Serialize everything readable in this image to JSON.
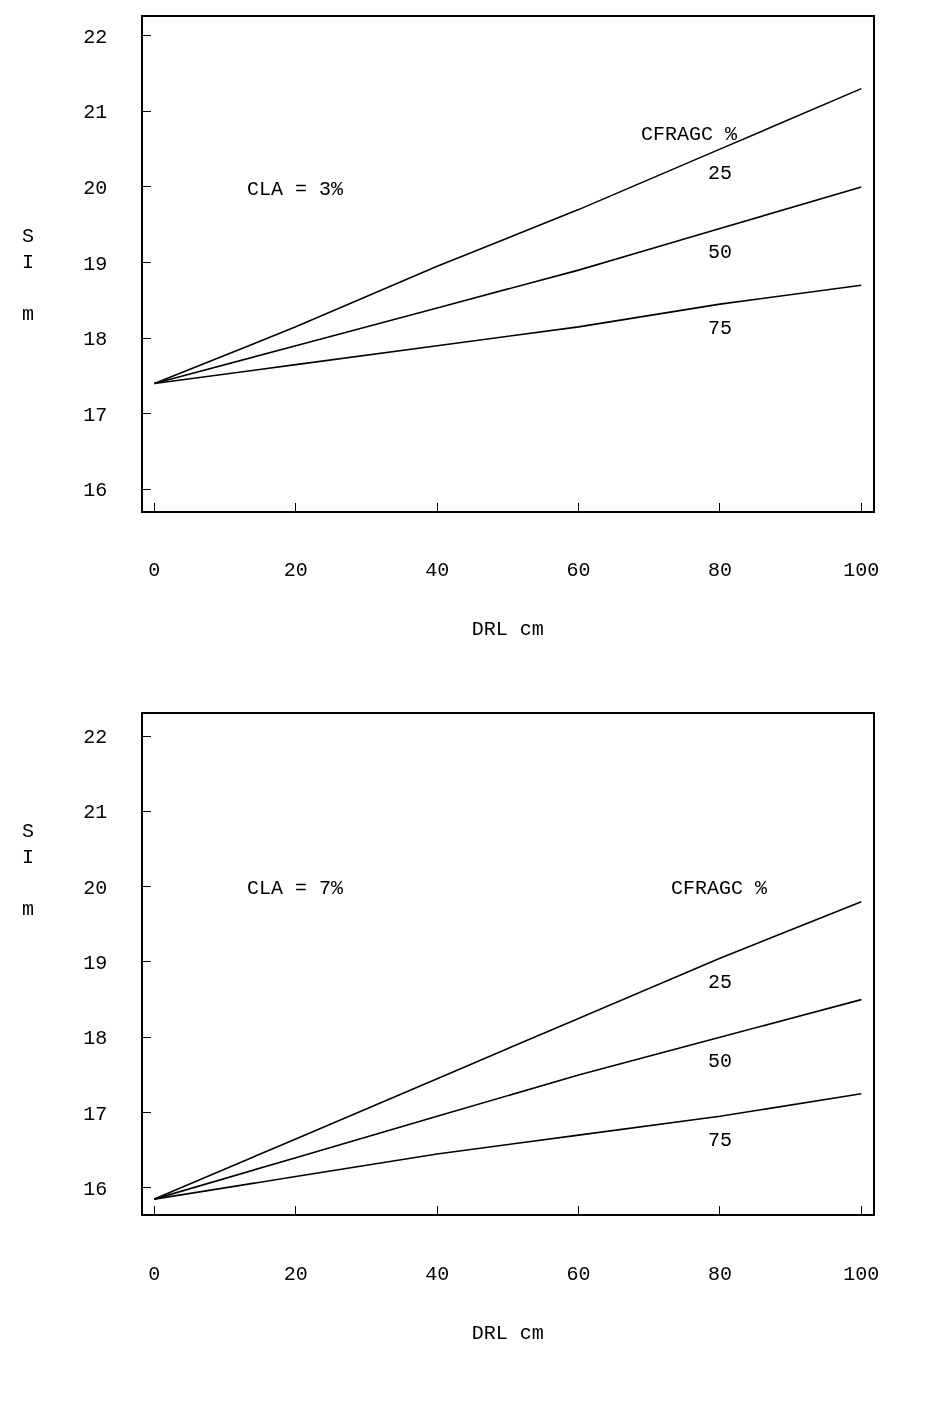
{
  "chart_data": [
    {
      "type": "line",
      "xlabel": "DRL cm",
      "ylabel": "SI m",
      "x": [
        0,
        20,
        40,
        60,
        80,
        100
      ],
      "xlim": [
        -1.6,
        101.6
      ],
      "ylim": [
        15.72,
        22.25
      ],
      "xticks": [
        0,
        20,
        40,
        60,
        80,
        100
      ],
      "yticks": [
        16,
        17,
        18,
        19,
        20,
        21,
        22
      ],
      "annotations": [
        "CLA = 3%",
        "CFRAGC %"
      ],
      "series": [
        {
          "name": "25",
          "color": "#000000",
          "values": [
            17.4,
            18.15,
            18.95,
            19.7,
            20.5,
            21.3
          ]
        },
        {
          "name": "50",
          "color": "#000000",
          "values": [
            17.4,
            17.9,
            18.4,
            18.9,
            19.45,
            20.0
          ]
        },
        {
          "name": "75",
          "color": "#000000",
          "values": [
            17.4,
            17.65,
            17.9,
            18.15,
            18.45,
            18.7
          ]
        }
      ]
    },
    {
      "type": "line",
      "xlabel": "DRL cm",
      "ylabel": "SI m",
      "x": [
        0,
        20,
        40,
        60,
        80,
        100
      ],
      "xlim": [
        -1.6,
        101.6
      ],
      "ylim": [
        15.65,
        22.3
      ],
      "xticks": [
        0,
        20,
        40,
        60,
        80,
        100
      ],
      "yticks": [
        16,
        17,
        18,
        19,
        20,
        21,
        22
      ],
      "annotations": [
        "CLA = 7%",
        "CFRAGC %"
      ],
      "series": [
        {
          "name": "25",
          "color": "#000000",
          "values": [
            15.85,
            16.65,
            17.45,
            18.25,
            19.05,
            19.8
          ]
        },
        {
          "name": "50",
          "color": "#000000",
          "values": [
            15.85,
            16.4,
            16.95,
            17.5,
            18.0,
            18.5
          ]
        },
        {
          "name": "75",
          "color": "#000000",
          "values": [
            15.85,
            16.15,
            16.45,
            16.7,
            16.95,
            17.25
          ]
        }
      ]
    }
  ]
}
